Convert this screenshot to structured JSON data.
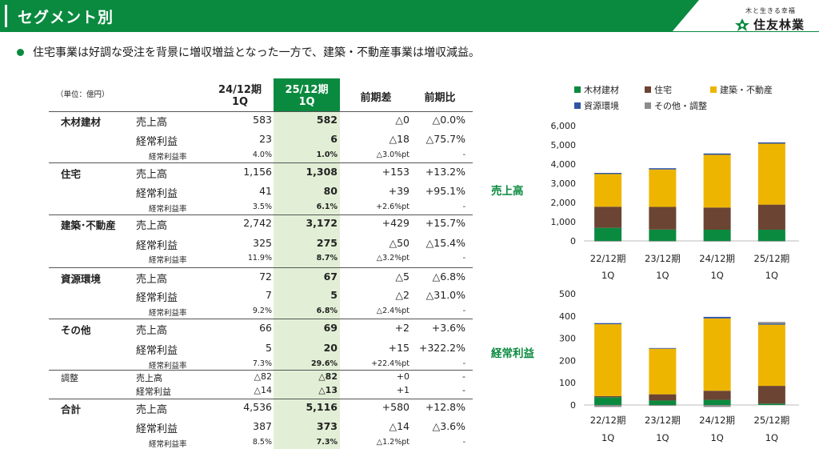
{
  "header": {
    "title": "セグメント別",
    "tagline": "木と生きる幸福",
    "company": "住友林業"
  },
  "summary": "住宅事業は好調な受注を背景に増収増益となった一方で、建築・不動産事業は増収減益。",
  "table": {
    "unit": "（単位：億円）",
    "col_prev_line1": "24/12期",
    "col_prev_line2": "1Q",
    "col_curr_line1": "25/12期",
    "col_curr_line2": "1Q",
    "col_diff": "前期差",
    "col_ratio": "前期比",
    "rows": [
      {
        "seg": "木材建材",
        "metric": "売上高",
        "prev": "583",
        "curr": "582",
        "diff": "△0",
        "ratio": "△0.0%",
        "style": "main"
      },
      {
        "seg": "",
        "metric": "経常利益",
        "prev": "23",
        "curr": "6",
        "diff": "△18",
        "ratio": "△75.7%",
        "style": "main"
      },
      {
        "seg": "",
        "metric": "経常利益率",
        "prev": "4.0%",
        "curr": "1.0%",
        "diff": "△3.0%pt",
        "ratio": "-",
        "style": "rate"
      },
      {
        "seg": "住宅",
        "metric": "売上高",
        "prev": "1,156",
        "curr": "1,308",
        "diff": "+153",
        "ratio": "+13.2%",
        "style": "main"
      },
      {
        "seg": "",
        "metric": "経常利益",
        "prev": "41",
        "curr": "80",
        "diff": "+39",
        "ratio": "+95.1%",
        "style": "main"
      },
      {
        "seg": "",
        "metric": "経常利益率",
        "prev": "3.5%",
        "curr": "6.1%",
        "diff": "+2.6%pt",
        "ratio": "-",
        "style": "rate"
      },
      {
        "seg": "建築･不動産",
        "metric": "売上高",
        "prev": "2,742",
        "curr": "3,172",
        "diff": "+429",
        "ratio": "+15.7%",
        "style": "main"
      },
      {
        "seg": "",
        "metric": "経常利益",
        "prev": "325",
        "curr": "275",
        "diff": "△50",
        "ratio": "△15.4%",
        "style": "main"
      },
      {
        "seg": "",
        "metric": "経常利益率",
        "prev": "11.9%",
        "curr": "8.7%",
        "diff": "△3.2%pt",
        "ratio": "-",
        "style": "rate"
      },
      {
        "seg": "資源環境",
        "metric": "売上高",
        "prev": "72",
        "curr": "67",
        "diff": "△5",
        "ratio": "△6.8%",
        "style": "main"
      },
      {
        "seg": "",
        "metric": "経常利益",
        "prev": "7",
        "curr": "5",
        "diff": "△2",
        "ratio": "△31.0%",
        "style": "main"
      },
      {
        "seg": "",
        "metric": "経常利益率",
        "prev": "9.2%",
        "curr": "6.8%",
        "diff": "△2.4%pt",
        "ratio": "-",
        "style": "rate"
      },
      {
        "seg": "その他",
        "metric": "売上高",
        "prev": "66",
        "curr": "69",
        "diff": "+2",
        "ratio": "+3.6%",
        "style": "main"
      },
      {
        "seg": "",
        "metric": "経常利益",
        "prev": "5",
        "curr": "20",
        "diff": "+15",
        "ratio": "+322.2%",
        "style": "main"
      },
      {
        "seg": "",
        "metric": "経常利益率",
        "prev": "7.3%",
        "curr": "29.6%",
        "diff": "+22.4%pt",
        "ratio": "-",
        "style": "rate"
      },
      {
        "seg": "調整",
        "metric": "売上高",
        "prev": "△82",
        "curr": "△82",
        "diff": "+0",
        "ratio": "-",
        "style": "adj"
      },
      {
        "seg": "",
        "metric": "経常利益",
        "prev": "△14",
        "curr": "△13",
        "diff": "+1",
        "ratio": "-",
        "style": "adj"
      },
      {
        "seg": "合計",
        "metric": "売上高",
        "prev": "4,536",
        "curr": "5,116",
        "diff": "+580",
        "ratio": "+12.8%",
        "style": "main"
      },
      {
        "seg": "",
        "metric": "経常利益",
        "prev": "387",
        "curr": "373",
        "diff": "△14",
        "ratio": "△3.6%",
        "style": "main"
      },
      {
        "seg": "",
        "metric": "経常利益率",
        "prev": "8.5%",
        "curr": "7.3%",
        "diff": "△1.2%pt",
        "ratio": "-",
        "style": "rate"
      }
    ]
  },
  "side_labels": {
    "sales": "売上高",
    "profit": "経常利益"
  },
  "colors": {
    "brand_green": "#0a8a3f",
    "highlight": "#e2efd6",
    "wood": "#0a8a3f",
    "housing": "#6b4433",
    "construction": "#eeb500",
    "resources": "#2e55a4",
    "other": "#8c8c8c"
  },
  "chart_data": [
    {
      "type": "bar",
      "stacked": true,
      "title": "売上高",
      "categories": [
        "22/12期|1Q",
        "23/12期|1Q",
        "24/12期|1Q",
        "25/12期|1Q"
      ],
      "ylim": [
        0,
        6000
      ],
      "yticks": [
        "0",
        "1,000",
        "2,000",
        "3,000",
        "4,000",
        "5,000",
        "6,000"
      ],
      "series": [
        {
          "name": "木材建材",
          "values": [
            680,
            590,
            583,
            582
          ]
        },
        {
          "name": "住宅",
          "values": [
            1100,
            1180,
            1156,
            1308
          ]
        },
        {
          "name": "建築・不動産",
          "values": [
            1700,
            1950,
            2742,
            3172
          ]
        },
        {
          "name": "資源環境",
          "values": [
            60,
            65,
            72,
            67
          ]
        },
        {
          "name": "その他・調整",
          "values": [
            -10,
            -15,
            -16,
            -13
          ]
        }
      ]
    },
    {
      "type": "bar",
      "stacked": true,
      "title": "経常利益",
      "categories": [
        "22/12期|1Q",
        "23/12期|1Q",
        "24/12期|1Q",
        "25/12期|1Q"
      ],
      "ylim": [
        0,
        500
      ],
      "yticks": [
        "0",
        "100",
        "200",
        "300",
        "400",
        "500"
      ],
      "series": [
        {
          "name": "木材建材",
          "values": [
            35,
            20,
            23,
            6
          ]
        },
        {
          "name": "住宅",
          "values": [
            5,
            28,
            41,
            80
          ]
        },
        {
          "name": "建築・不動産",
          "values": [
            323,
            205,
            325,
            275
          ]
        },
        {
          "name": "資源環境",
          "values": [
            5,
            3,
            7,
            5
          ]
        },
        {
          "name": "その他・調整",
          "values": [
            -9,
            -4,
            -9,
            7
          ]
        }
      ]
    }
  ]
}
